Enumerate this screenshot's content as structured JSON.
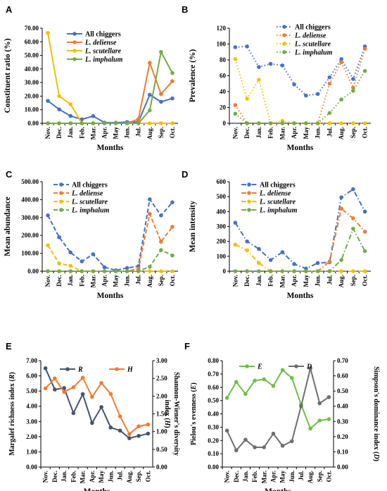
{
  "chart_data": [
    {
      "id": "A",
      "type": "line",
      "panel_label": "A",
      "categories": [
        "Nov.",
        "Dec.",
        "Jan.",
        "Feb.",
        "Mar.",
        "Apr.",
        "May",
        "Jun.",
        "Jul.",
        "Aug.",
        "Sep.",
        "Oct."
      ],
      "xlabel": "Months",
      "ylabel": "Constituent ratio (%)",
      "ylim": [
        0,
        70
      ],
      "yticks": [
        "0.00",
        "10.00",
        "20.00",
        "30.00",
        "40.00",
        "50.00",
        "60.00",
        "70.00"
      ],
      "legend_position": "top-center",
      "series": [
        {
          "name": "All chiggers",
          "color": "#4472C4",
          "dash": "solid",
          "values": [
            16.5,
            10.2,
            5.4,
            2.9,
            5.3,
            0.5,
            0.4,
            0.9,
            1.0,
            21.0,
            15.8,
            18.3
          ]
        },
        {
          "name": "L. deliense",
          "italic": true,
          "color": "#ED7D31",
          "dash": "solid",
          "values": [
            0,
            0,
            0,
            0,
            0,
            0,
            0,
            0,
            3.0,
            44.5,
            21.5,
            31.0
          ]
        },
        {
          "name": "L. scutellare",
          "italic": true,
          "color": "#F2C000",
          "dash": "solid",
          "values": [
            66.5,
            20.0,
            14.0,
            0,
            0,
            0,
            0,
            0,
            0,
            0,
            0,
            0
          ]
        },
        {
          "name": "L. imphalum",
          "italic": true,
          "color": "#70AD47",
          "dash": "solid",
          "values": [
            0,
            0,
            0,
            0,
            0,
            0,
            0,
            0,
            0,
            9.5,
            52.5,
            37.0
          ]
        }
      ]
    },
    {
      "id": "B",
      "type": "line",
      "panel_label": "B",
      "categories": [
        "Nov.",
        "Dec.",
        "Jan.",
        "Feb.",
        "Mar.",
        "Apr.",
        "May",
        "Jun.",
        "Jul.",
        "Aug.",
        "Sep.",
        "Oct."
      ],
      "xlabel": "Months",
      "ylabel": "Prevalence (%)",
      "ylim": [
        0,
        120
      ],
      "yticks": [
        "0",
        "20",
        "40",
        "60",
        "80",
        "100",
        "120"
      ],
      "legend_position": "top-center",
      "series": [
        {
          "name": "All chiggers",
          "color": "#4472C4",
          "dash": "dot",
          "values": [
            96,
            97,
            71,
            75,
            73,
            49,
            35,
            37,
            58,
            81,
            56,
            97
          ]
        },
        {
          "name": "L. deliense",
          "italic": true,
          "color": "#ED7D31",
          "dash": "dot",
          "values": [
            23,
            0,
            0,
            0,
            0,
            0,
            0,
            0,
            50,
            77,
            45,
            94
          ]
        },
        {
          "name": "L. scutellare",
          "italic": true,
          "color": "#F2C000",
          "dash": "dot",
          "values": [
            81,
            31,
            55,
            0,
            3,
            0,
            0,
            0,
            0,
            0,
            0,
            0
          ]
        },
        {
          "name": "L. imphalum",
          "italic": true,
          "color": "#70AD47",
          "dash": "dot",
          "values": [
            12,
            0,
            0,
            0,
            0,
            0,
            0,
            0,
            13,
            30,
            41,
            66
          ]
        }
      ]
    },
    {
      "id": "C",
      "type": "line",
      "panel_label": "C",
      "categories": [
        "Nov.",
        "Dec.",
        "Jan.",
        "Feb.",
        "Mar.",
        "Apr.",
        "May",
        "Jun.",
        "Jul.",
        "Aug.",
        "Sep.",
        "Oct."
      ],
      "xlabel": "Months",
      "ylabel": "Mean abundance",
      "ylim": [
        0,
        500
      ],
      "yticks": [
        "0.00",
        "100.00",
        "200.00",
        "300.00",
        "400.00",
        "500.00"
      ],
      "legend_position": "top-left",
      "series": [
        {
          "name": "All chiggers",
          "color": "#4472C4",
          "dash": "dash",
          "values": [
            312,
            190,
            105,
            55,
            95,
            22,
            5,
            18,
            28,
            402,
            312,
            385
          ]
        },
        {
          "name": "L. deliense",
          "italic": true,
          "color": "#ED7D31",
          "dash": "dash",
          "values": [
            0,
            0,
            0,
            0,
            0,
            0,
            0,
            0,
            14,
            320,
            165,
            248
          ]
        },
        {
          "name": "L. scutellare",
          "italic": true,
          "color": "#F2C000",
          "dash": "dash",
          "values": [
            145,
            43,
            30,
            0,
            0,
            0,
            0,
            0,
            0,
            0,
            0,
            0
          ]
        },
        {
          "name": "L. imphalum",
          "italic": true,
          "color": "#70AD47",
          "dash": "dash",
          "values": [
            0,
            0,
            0,
            0,
            0,
            0,
            0,
            0,
            0,
            25,
            118,
            88
          ]
        }
      ]
    },
    {
      "id": "D",
      "type": "line",
      "panel_label": "D",
      "categories": [
        "Nov.",
        "Dec.",
        "Jan.",
        "Feb.",
        "Mar.",
        "Apr.",
        "May",
        "Jun.",
        "Jul.",
        "Aug.",
        "Sep.",
        "Oct."
      ],
      "xlabel": "Months",
      "ylabel": "Mean intensity",
      "ylim": [
        0,
        600
      ],
      "yticks": [
        "0",
        "100",
        "200",
        "300",
        "400",
        "500",
        "600"
      ],
      "legend_position": "top-left",
      "series": [
        {
          "name": "All chiggers",
          "color": "#4472C4",
          "dash": "dashdot",
          "values": [
            325,
            200,
            150,
            75,
            128,
            48,
            18,
            55,
            60,
            495,
            550,
            400
          ]
        },
        {
          "name": "L. deliense",
          "italic": true,
          "color": "#ED7D31",
          "dash": "dashdot",
          "values": [
            0,
            0,
            0,
            0,
            0,
            0,
            0,
            0,
            65,
            420,
            355,
            265
          ]
        },
        {
          "name": "L. scutellare",
          "italic": true,
          "color": "#F2C000",
          "dash": "dashdot",
          "values": [
            178,
            140,
            55,
            0,
            0,
            0,
            0,
            0,
            0,
            0,
            0,
            0
          ]
        },
        {
          "name": "L. imphalum",
          "italic": true,
          "color": "#70AD47",
          "dash": "dashdot",
          "values": [
            0,
            0,
            0,
            0,
            0,
            0,
            0,
            0,
            0,
            75,
            285,
            135
          ]
        }
      ]
    },
    {
      "id": "E",
      "type": "line",
      "panel_label": "E",
      "categories": [
        "Nov.",
        "Dec.",
        "Jan.",
        "Feb.",
        "Mar.",
        "Apr.",
        "May",
        "Jun.",
        "Jul.",
        "Aug.",
        "Sep.",
        "Oct."
      ],
      "xlabel": "Months",
      "ylabel": "Margalef richness index (R)",
      "ylabel_parts": [
        "Margalef richness index (",
        "R",
        ")"
      ],
      "y2label_line1": "Shannon-Wiener's diversity",
      "y2label_line2_parts": [
        "index (",
        "H",
        ")"
      ],
      "ylim": [
        0,
        7
      ],
      "yticks": [
        "0.00",
        "1.00",
        "2.00",
        "3.00",
        "4.00",
        "5.00",
        "6.00",
        "7.00"
      ],
      "y2lim": [
        0,
        3
      ],
      "y2ticks": [
        "0.00",
        "0.50",
        "1.00",
        "1.50",
        "2.00",
        "2.50",
        "3.00"
      ],
      "legend_position": "top-center",
      "series": [
        {
          "name": "R",
          "axis": "left",
          "color": "#44546A",
          "dash": "solid",
          "values": [
            6.5,
            5.1,
            5.2,
            3.55,
            4.8,
            2.9,
            3.95,
            2.6,
            2.4,
            1.9,
            2.05,
            2.2
          ]
        },
        {
          "name": "H",
          "axis": "right",
          "color": "#ED7D31",
          "dash": "solid",
          "values": [
            2.22,
            2.5,
            2.12,
            2.25,
            2.52,
            1.98,
            2.37,
            2.06,
            1.43,
            0.93,
            1.15,
            1.2
          ]
        }
      ]
    },
    {
      "id": "F",
      "type": "line",
      "panel_label": "F",
      "categories": [
        "Nov.",
        "Dec.",
        "Jan.",
        "Feb.",
        "Mar.",
        "Apr.",
        "May",
        "Jun.",
        "Jul.",
        "Aug.",
        "Sep.",
        "Oct."
      ],
      "xlabel": "Months",
      "ylabel": "Pielou's evenness (E)",
      "ylabel_parts": [
        "Pielou's evenness (",
        "E",
        ")"
      ],
      "y2label_parts": [
        "Simpson's dominance index (",
        "D",
        ")"
      ],
      "ylim": [
        0,
        0.8
      ],
      "yticks": [
        "0.00",
        "0.10",
        "0.20",
        "0.30",
        "0.40",
        "0.50",
        "0.60",
        "0.70",
        "0.80"
      ],
      "y2lim": [
        0,
        0.7
      ],
      "y2ticks": [
        "0.00",
        "0.10",
        "0.20",
        "0.30",
        "0.40",
        "0.50",
        "0.60",
        "0.70"
      ],
      "legend_position": "top-center",
      "series": [
        {
          "name": "E",
          "axis": "left",
          "color": "#70BF45",
          "dash": "solid",
          "values": [
            0.52,
            0.64,
            0.55,
            0.65,
            0.66,
            0.61,
            0.73,
            0.67,
            0.47,
            0.29,
            0.35,
            0.36
          ]
        },
        {
          "name": "D",
          "axis": "right",
          "color": "#6E6E6E",
          "dash": "solid",
          "values": [
            0.24,
            0.11,
            0.18,
            0.13,
            0.13,
            0.22,
            0.14,
            0.17,
            0.4,
            0.65,
            0.42,
            0.46
          ]
        }
      ]
    }
  ]
}
